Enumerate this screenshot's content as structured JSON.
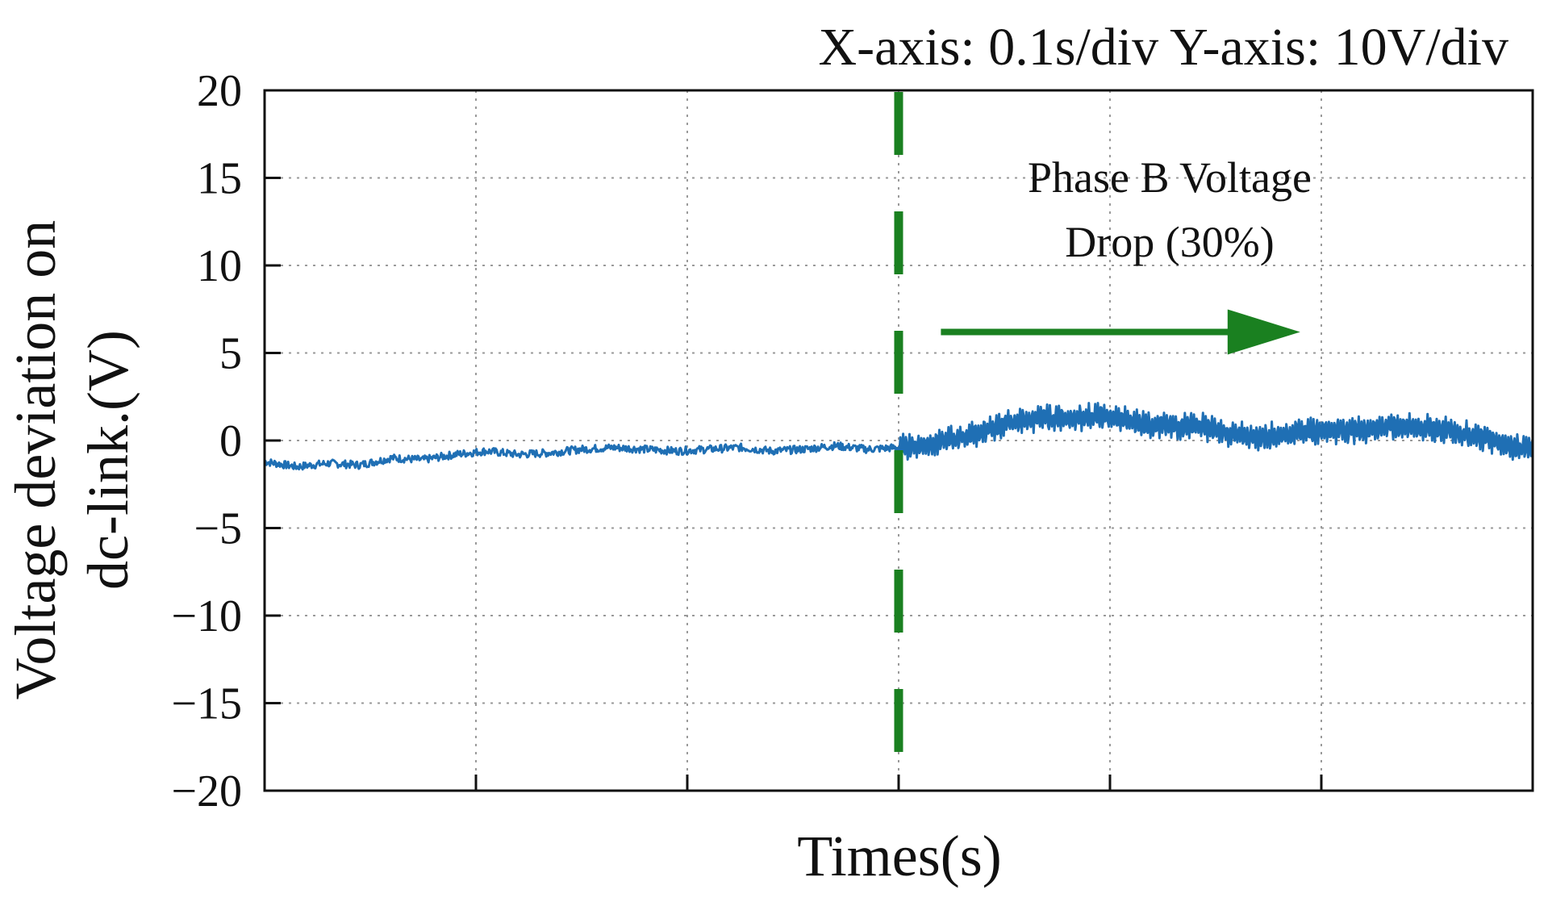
{
  "chart_data": {
    "type": "line",
    "title": "X-axis: 0.1s/div  Y-axis: 10V/div",
    "xlabel": "Times(s)",
    "ylabel_lines": [
      "Voltage deviation on",
      "dc-link.(V)"
    ],
    "ylim": [
      -20,
      20
    ],
    "yticks": [
      20,
      15,
      10,
      5,
      0,
      -5,
      -10,
      -15,
      -20
    ],
    "ytick_labels": [
      "20",
      "15",
      "10",
      "5",
      "0",
      "−5",
      "−10",
      "−15",
      "−20"
    ],
    "xlim": [
      0,
      0.6
    ],
    "xticks": [
      0.1,
      0.2,
      0.3,
      0.4,
      0.5
    ],
    "x_tick_labels_shown": false,
    "grid": true,
    "colors": {
      "series": "#1f6fb4",
      "event": "#1a8020",
      "axes": "#111111",
      "grid": "#9a9a9a"
    },
    "event_line": {
      "x": 0.3,
      "style": "dashed"
    },
    "annotation": {
      "lines": [
        "Phase B Voltage",
        "Drop (30%)"
      ],
      "arrow": {
        "x_start": 0.32,
        "x_end": 0.49,
        "y": 6.2
      }
    },
    "series": [
      {
        "points": [
          [
            0.0,
            -1.2
          ],
          [
            0.015,
            -1.5
          ],
          [
            0.03,
            -1.3
          ],
          [
            0.045,
            -1.4
          ],
          [
            0.06,
            -1.0
          ],
          [
            0.075,
            -1.1
          ],
          [
            0.09,
            -0.8
          ],
          [
            0.105,
            -0.6
          ],
          [
            0.12,
            -0.8
          ],
          [
            0.135,
            -0.7
          ],
          [
            0.15,
            -0.5
          ],
          [
            0.165,
            -0.4
          ],
          [
            0.18,
            -0.5
          ],
          [
            0.195,
            -0.6
          ],
          [
            0.21,
            -0.5
          ],
          [
            0.225,
            -0.4
          ],
          [
            0.24,
            -0.6
          ],
          [
            0.255,
            -0.5
          ],
          [
            0.27,
            -0.3
          ],
          [
            0.285,
            -0.5
          ],
          [
            0.3,
            -0.4
          ],
          [
            0.315,
            -0.2
          ],
          [
            0.33,
            0.2
          ],
          [
            0.34,
            0.5
          ],
          [
            0.35,
            0.9
          ],
          [
            0.36,
            1.2
          ],
          [
            0.37,
            1.3
          ],
          [
            0.38,
            1.2
          ],
          [
            0.39,
            1.4
          ],
          [
            0.4,
            1.3
          ],
          [
            0.41,
            1.1
          ],
          [
            0.42,
            0.9
          ],
          [
            0.43,
            0.8
          ],
          [
            0.44,
            0.9
          ],
          [
            0.45,
            0.6
          ],
          [
            0.46,
            0.3
          ],
          [
            0.47,
            0.2
          ],
          [
            0.48,
            0.3
          ],
          [
            0.49,
            0.5
          ],
          [
            0.5,
            0.6
          ],
          [
            0.51,
            0.6
          ],
          [
            0.52,
            0.6
          ],
          [
            0.53,
            0.8
          ],
          [
            0.54,
            0.8
          ],
          [
            0.55,
            0.7
          ],
          [
            0.56,
            0.6
          ],
          [
            0.57,
            0.3
          ],
          [
            0.58,
            0.1
          ],
          [
            0.59,
            -0.3
          ],
          [
            0.6,
            -0.5
          ]
        ],
        "ripple_after_event": true,
        "ripple_amplitude": 0.6
      }
    ]
  }
}
